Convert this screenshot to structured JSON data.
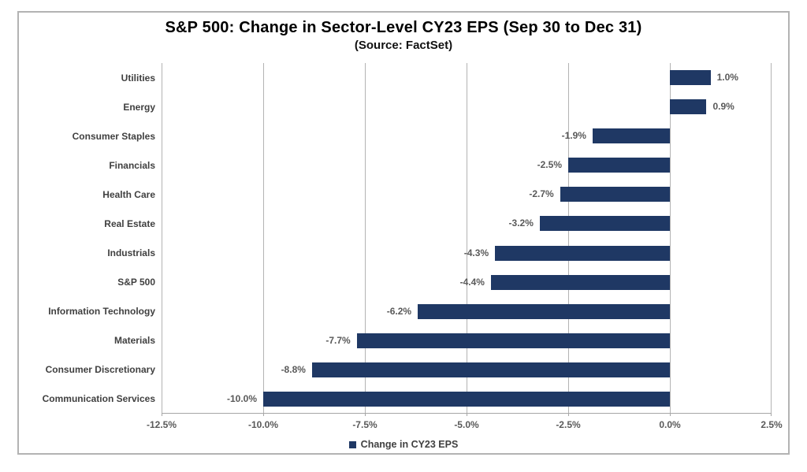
{
  "chart_data": {
    "type": "bar",
    "orientation": "horizontal",
    "title": "S&P 500: Change in Sector-Level CY23 EPS (Sep 30 to Dec 31)",
    "subtitle": "(Source: FactSet)",
    "categories": [
      "Utilities",
      "Energy",
      "Consumer Staples",
      "Financials",
      "Health Care",
      "Real Estate",
      "Industrials",
      "S&P 500",
      "Information Technology",
      "Materials",
      "Consumer Discretionary",
      "Communication Services"
    ],
    "values": [
      1.0,
      0.9,
      -1.9,
      -2.5,
      -2.7,
      -3.2,
      -4.3,
      -4.4,
      -6.2,
      -7.7,
      -8.8,
      -10.0
    ],
    "value_labels": [
      "1.0%",
      "0.9%",
      "-1.9%",
      "-2.5%",
      "-2.7%",
      "-3.2%",
      "-4.3%",
      "-4.4%",
      "-6.2%",
      "-7.7%",
      "-8.8%",
      "-10.0%"
    ],
    "xlim": [
      -12.5,
      2.5
    ],
    "xticks": [
      {
        "value": -12.5,
        "label": "-12.5%"
      },
      {
        "value": -10.0,
        "label": "-10.0%"
      },
      {
        "value": -7.5,
        "label": "-7.5%"
      },
      {
        "value": -5.0,
        "label": "-5.0%"
      },
      {
        "value": -2.5,
        "label": "-2.5%"
      },
      {
        "value": 0.0,
        "label": "0.0%"
      },
      {
        "value": 2.5,
        "label": "2.5%"
      }
    ],
    "grid": "vertical-gridlines-on",
    "legend_position": "bottom",
    "legend": [
      {
        "label": "Change in CY23 EPS",
        "color": "#1f3864"
      }
    ],
    "bar_color": "#1f3864",
    "gridline_color": "#b3b3b3",
    "axis_color": "#a6a6a6",
    "frame_border_color": "#b3b3b3"
  }
}
